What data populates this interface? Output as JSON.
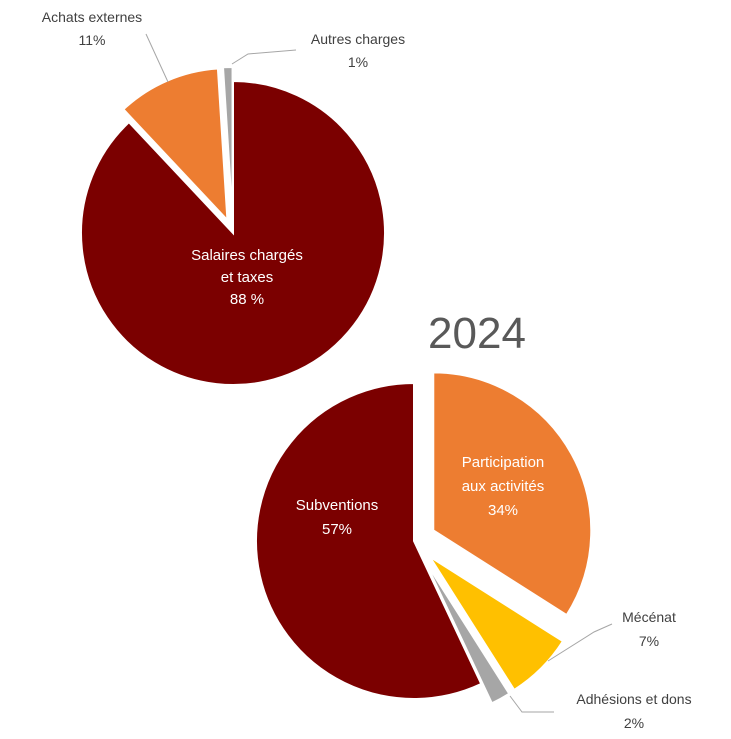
{
  "chart_data": [
    {
      "type": "pie",
      "title": "",
      "slices": [
        {
          "label_lines": [
            "Salaires chargés",
            "et taxes",
            "88 %"
          ],
          "value": 88,
          "color": "#7b0000"
        },
        {
          "label_lines": [
            "Achats externes",
            "11%"
          ],
          "value": 11,
          "color": "#ed7d31"
        },
        {
          "label_lines": [
            "Autres charges",
            "1%"
          ],
          "value": 1,
          "color": "#a6a6a6"
        }
      ]
    },
    {
      "type": "pie",
      "title": "2024",
      "slices": [
        {
          "label_lines": [
            "Participation",
            "aux activités",
            "34%"
          ],
          "value": 34,
          "color": "#ed7d31"
        },
        {
          "label_lines": [
            "Mécénat",
            "7%"
          ],
          "value": 7,
          "color": "#ffc000"
        },
        {
          "label_lines": [
            "Adhésions et dons",
            "2%"
          ],
          "value": 2,
          "color": "#a6a6a6"
        },
        {
          "label_lines": [
            "Subventions",
            "57%"
          ],
          "value": 57,
          "color": "#7b0000"
        }
      ]
    }
  ]
}
